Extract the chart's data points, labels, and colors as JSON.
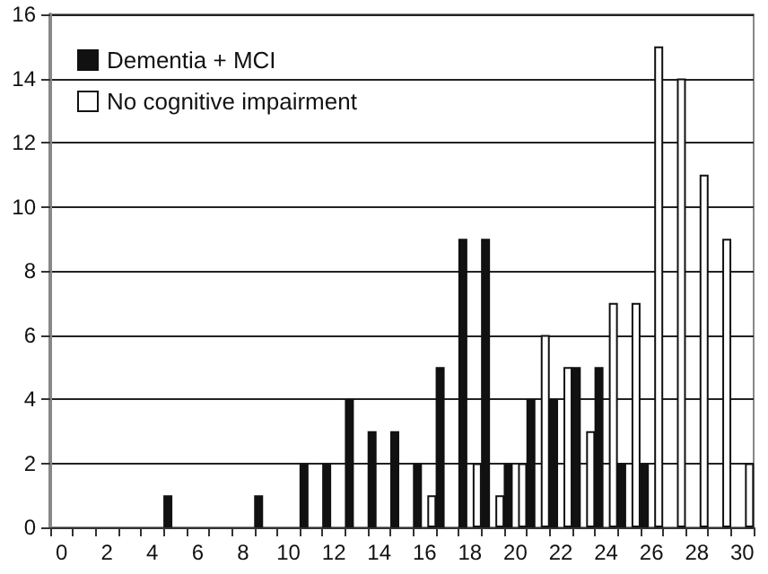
{
  "chart_data": {
    "type": "bar",
    "categories": [
      "0",
      null,
      "2",
      null,
      "4",
      null,
      "6",
      null,
      "8",
      null,
      "10",
      null,
      "12",
      null,
      "14",
      null,
      "16",
      null,
      "18",
      null,
      "20",
      null,
      "22",
      null,
      "24",
      null,
      "26",
      null,
      "28",
      null,
      "30"
    ],
    "series": [
      {
        "name": "Dementia + MCI",
        "color": "#111111",
        "values": [
          0,
          0,
          0,
          0,
          0,
          1,
          0,
          0,
          0,
          1,
          0,
          2,
          2,
          4,
          3,
          3,
          2,
          5,
          9,
          9,
          2,
          4,
          4,
          5,
          5,
          2,
          2,
          0,
          0,
          0,
          0
        ]
      },
      {
        "name": "No cognitive impairment",
        "color": "#ffffff",
        "values": [
          0,
          0,
          0,
          0,
          0,
          0,
          0,
          0,
          0,
          0,
          0,
          0,
          0,
          0,
          0,
          0,
          1,
          0,
          2,
          1,
          2,
          6,
          5,
          3,
          7,
          7,
          15,
          14,
          11,
          9,
          2
        ]
      }
    ],
    "ylim": [
      0,
      16
    ],
    "yticks": [
      0,
      2,
      4,
      6,
      8,
      10,
      12,
      14,
      16
    ],
    "grid": "y",
    "legend": "top left"
  }
}
